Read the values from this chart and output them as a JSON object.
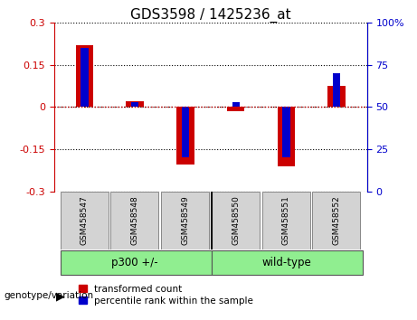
{
  "title": "GDS3598 / 1425236_at",
  "samples": [
    "GSM458547",
    "GSM458548",
    "GSM458549",
    "GSM458550",
    "GSM458551",
    "GSM458552"
  ],
  "red_values": [
    0.22,
    0.02,
    -0.205,
    -0.015,
    -0.21,
    0.075
  ],
  "blue_values": [
    85,
    53,
    20,
    53,
    20,
    70
  ],
  "left_ylim": [
    -0.3,
    0.3
  ],
  "right_ylim": [
    0,
    100
  ],
  "left_yticks": [
    -0.3,
    -0.15,
    0,
    0.15,
    0.3
  ],
  "right_yticks": [
    0,
    25,
    50,
    75,
    100
  ],
  "right_yticklabels": [
    "0",
    "25",
    "50",
    "75",
    "100%"
  ],
  "group1_label": "p300 +/-",
  "group2_label": "wild-type",
  "group_color": "#90EE90",
  "red_color": "#CC0000",
  "blue_color": "#0000CC",
  "bar_width": 0.35,
  "blue_bar_width": 0.15,
  "legend_red": "transformed count",
  "legend_blue": "percentile rank within the sample",
  "genotype_label": "genotype/variation",
  "bg_label": "#D3D3D3",
  "title_fontsize": 11,
  "tick_fontsize": 8
}
